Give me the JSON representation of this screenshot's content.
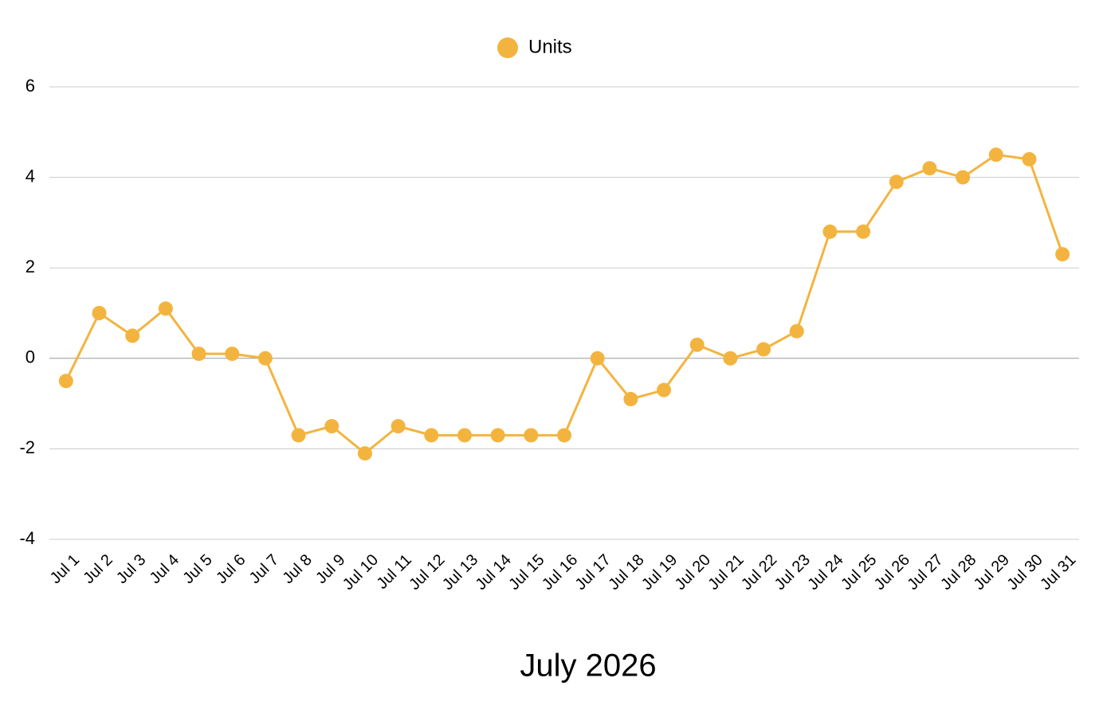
{
  "chart_data": {
    "type": "line",
    "x_label": "July 2026",
    "categories": [
      "Jul 1",
      "Jul 2",
      "Jul 3",
      "Jul 4",
      "Jul 5",
      "Jul 6",
      "Jul 7",
      "Jul 8",
      "Jul 9",
      "Jul 10",
      "Jul 11",
      "Jul 12",
      "Jul 13",
      "Jul 14",
      "Jul 15",
      "Jul 16",
      "Jul 17",
      "Jul 18",
      "Jul 19",
      "Jul 20",
      "Jul 21",
      "Jul 22",
      "Jul 23",
      "Jul 24",
      "Jul 25",
      "Jul 26",
      "Jul 27",
      "Jul 28",
      "Jul 29",
      "Jul 30",
      "Jul 31"
    ],
    "series": [
      {
        "name": "Units",
        "color": "#f3b43f",
        "values": [
          -0.5,
          1,
          0.5,
          1.1,
          0.1,
          0.1,
          0,
          -1.7,
          -1.5,
          -2.1,
          -1.5,
          -1.7,
          -1.7,
          -1.7,
          -1.7,
          -1.7,
          0,
          -0.9,
          -0.7,
          0.3,
          0,
          0.2,
          0.6,
          2.8,
          2.8,
          3.9,
          4.2,
          4.0,
          4.5,
          4.4,
          2.3
        ]
      }
    ],
    "ylim": [
      -4,
      6
    ],
    "yticks": [
      -4,
      -2,
      0,
      2,
      4,
      6
    ],
    "grid": true,
    "legend": "top"
  }
}
